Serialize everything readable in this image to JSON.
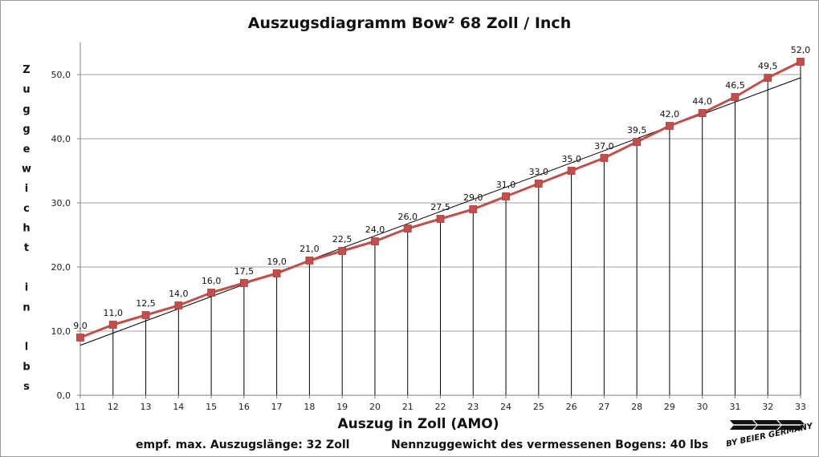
{
  "chart_data": {
    "type": "line",
    "title": "Auszugsdiagramm Bow² 68 Zoll / Inch",
    "xlabel": "Auszug in Zoll (AMO)",
    "ylabel": "Zuggewicht in lbs",
    "x": [
      11,
      12,
      13,
      14,
      15,
      16,
      17,
      18,
      19,
      20,
      21,
      22,
      23,
      24,
      25,
      26,
      27,
      28,
      29,
      30,
      31,
      32,
      33
    ],
    "series": [
      {
        "values": [
          9.0,
          11.0,
          12.5,
          14.0,
          16.0,
          17.5,
          19.0,
          21.0,
          22.5,
          24.0,
          26.0,
          27.5,
          29.0,
          31.0,
          33.0,
          35.0,
          37.0,
          39.5,
          42.0,
          44.0,
          46.5,
          49.5,
          52.0
        ],
        "data_labels": [
          "9,0",
          "11,0",
          "12,5",
          "14,0",
          "16,0",
          "17,5",
          "19,0",
          "21,0",
          "22,5",
          "24,0",
          "26,0",
          "27,5",
          "29,0",
          "31,0",
          "33,0",
          "35,0",
          "37,0",
          "39,5",
          "42,0",
          "44,0",
          "46,5",
          "49,5",
          "52,0"
        ],
        "color": "#C0504D"
      }
    ],
    "trendline": {
      "from": [
        11,
        7.8
      ],
      "to": [
        33,
        49.5
      ],
      "color": "#000000"
    },
    "ylim": [
      0,
      55
    ],
    "xlim": [
      11,
      33
    ],
    "yticks": [
      0,
      10,
      20,
      30,
      40,
      50
    ],
    "ytick_labels": [
      "0,0",
      "10,0",
      "20,0",
      "30,0",
      "40,0",
      "50,0"
    ],
    "xtick_labels": [
      "11",
      "12",
      "13",
      "14",
      "15",
      "16",
      "17",
      "18",
      "19",
      "20",
      "21",
      "22",
      "23",
      "24",
      "25",
      "26",
      "27",
      "28",
      "29",
      "30",
      "31",
      "32",
      "33"
    ],
    "grid": true,
    "drop_lines": true
  },
  "footer": {
    "note_left": "empf. max. Auszugslänge: 32 Zoll",
    "note_right": "Nennzuggewicht des vermessenen Bogens: 40 lbs",
    "logo_text": "BY BEIER GERMANY"
  }
}
